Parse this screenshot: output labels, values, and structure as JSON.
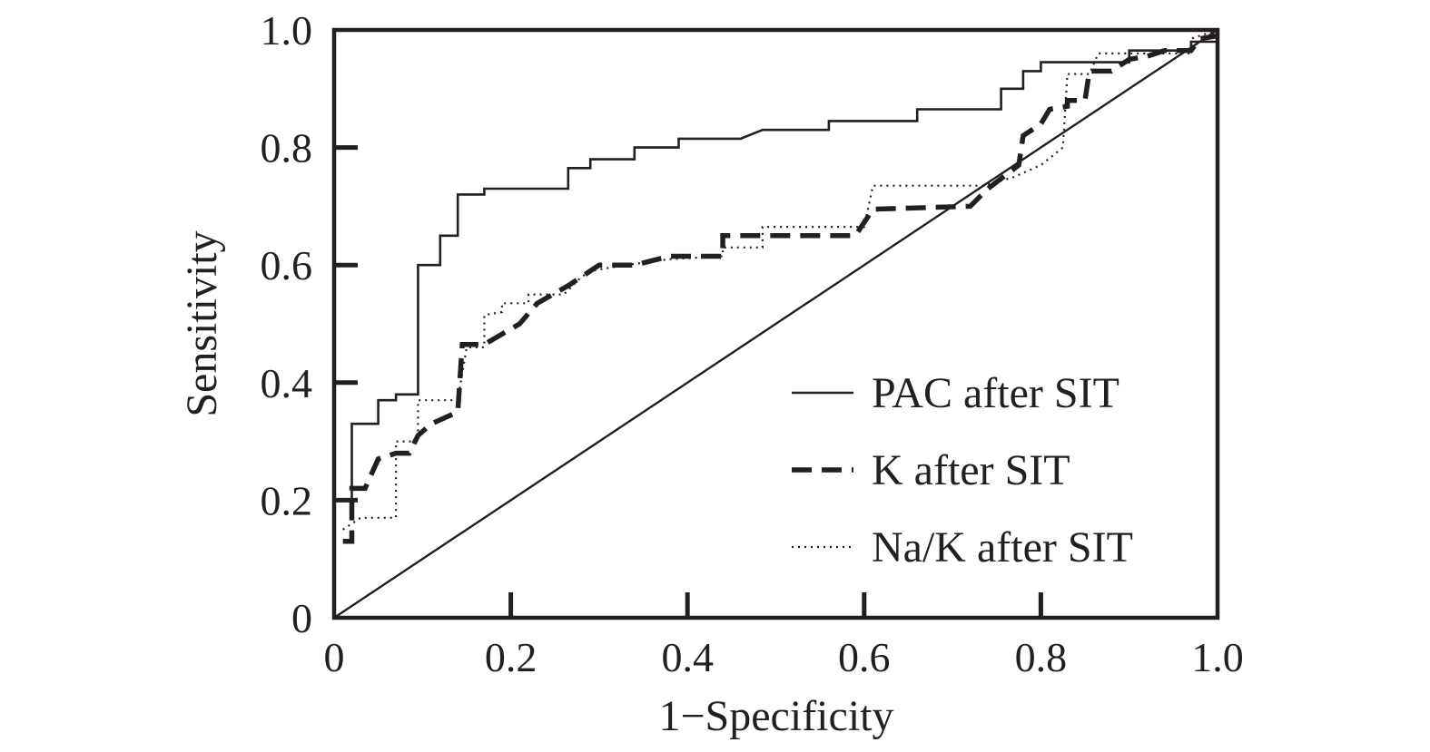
{
  "chart_data": {
    "type": "line",
    "title": "",
    "xlabel": "1−Specificity",
    "ylabel": "Sensitivity",
    "xlim": [
      0,
      1
    ],
    "ylim": [
      0,
      1
    ],
    "x_ticks": [
      0,
      0.2,
      0.4,
      0.6,
      0.8,
      1.0
    ],
    "x_tick_labels": [
      "0",
      "0.2",
      "0.4",
      "0.6",
      "0.8",
      "1.0"
    ],
    "y_ticks": [
      0,
      0.2,
      0.4,
      0.6,
      0.8,
      1.0
    ],
    "y_tick_labels": [
      "0",
      "0.2",
      "0.4",
      "0.6",
      "0.8",
      "1.0"
    ],
    "grid": false,
    "legend_position": "bottom-right",
    "reference_line": {
      "name": "Reference",
      "points": [
        [
          0,
          0
        ],
        [
          1,
          1
        ]
      ]
    },
    "series": [
      {
        "name": "PAC after SIT",
        "style": "solid",
        "points": [
          [
            0,
            0.2
          ],
          [
            0.02,
            0.2
          ],
          [
            0.02,
            0.22
          ],
          [
            0.02,
            0.33
          ],
          [
            0.05,
            0.33
          ],
          [
            0.05,
            0.37
          ],
          [
            0.07,
            0.37
          ],
          [
            0.07,
            0.38
          ],
          [
            0.095,
            0.38
          ],
          [
            0.095,
            0.6
          ],
          [
            0.12,
            0.6
          ],
          [
            0.12,
            0.65
          ],
          [
            0.14,
            0.65
          ],
          [
            0.14,
            0.72
          ],
          [
            0.17,
            0.72
          ],
          [
            0.17,
            0.73
          ],
          [
            0.265,
            0.73
          ],
          [
            0.265,
            0.765
          ],
          [
            0.29,
            0.765
          ],
          [
            0.29,
            0.78
          ],
          [
            0.34,
            0.78
          ],
          [
            0.34,
            0.8
          ],
          [
            0.39,
            0.8
          ],
          [
            0.39,
            0.815
          ],
          [
            0.46,
            0.815
          ],
          [
            0.485,
            0.83
          ],
          [
            0.56,
            0.83
          ],
          [
            0.56,
            0.845
          ],
          [
            0.66,
            0.845
          ],
          [
            0.66,
            0.865
          ],
          [
            0.755,
            0.865
          ],
          [
            0.755,
            0.9
          ],
          [
            0.78,
            0.9
          ],
          [
            0.78,
            0.93
          ],
          [
            0.8,
            0.93
          ],
          [
            0.8,
            0.945
          ],
          [
            0.9,
            0.945
          ],
          [
            0.9,
            0.965
          ],
          [
            0.97,
            0.965
          ],
          [
            0.97,
            0.98
          ],
          [
            1.0,
            0.98
          ],
          [
            1.0,
            1.0
          ]
        ]
      },
      {
        "name": "K after SIT",
        "style": "dashed",
        "points": [
          [
            0.01,
            0.13
          ],
          [
            0.02,
            0.13
          ],
          [
            0.02,
            0.22
          ],
          [
            0.035,
            0.22
          ],
          [
            0.05,
            0.27
          ],
          [
            0.07,
            0.28
          ],
          [
            0.085,
            0.28
          ],
          [
            0.095,
            0.31
          ],
          [
            0.11,
            0.33
          ],
          [
            0.14,
            0.35
          ],
          [
            0.145,
            0.465
          ],
          [
            0.17,
            0.465
          ],
          [
            0.21,
            0.5
          ],
          [
            0.23,
            0.535
          ],
          [
            0.265,
            0.565
          ],
          [
            0.29,
            0.59
          ],
          [
            0.3,
            0.6
          ],
          [
            0.34,
            0.6
          ],
          [
            0.38,
            0.615
          ],
          [
            0.44,
            0.615
          ],
          [
            0.44,
            0.65
          ],
          [
            0.59,
            0.65
          ],
          [
            0.61,
            0.695
          ],
          [
            0.72,
            0.7
          ],
          [
            0.74,
            0.73
          ],
          [
            0.775,
            0.77
          ],
          [
            0.78,
            0.82
          ],
          [
            0.8,
            0.84
          ],
          [
            0.81,
            0.865
          ],
          [
            0.83,
            0.87
          ],
          [
            0.83,
            0.88
          ],
          [
            0.85,
            0.88
          ],
          [
            0.855,
            0.93
          ],
          [
            0.88,
            0.93
          ],
          [
            0.9,
            0.95
          ],
          [
            0.92,
            0.955
          ],
          [
            0.94,
            0.965
          ],
          [
            0.97,
            0.965
          ],
          [
            0.98,
            0.985
          ],
          [
            1.0,
            0.99
          ]
        ]
      },
      {
        "name": "Na/K after SIT",
        "style": "dotted",
        "points": [
          [
            0.01,
            0.15
          ],
          [
            0.02,
            0.16
          ],
          [
            0.03,
            0.17
          ],
          [
            0.07,
            0.17
          ],
          [
            0.07,
            0.3
          ],
          [
            0.095,
            0.3
          ],
          [
            0.095,
            0.37
          ],
          [
            0.14,
            0.37
          ],
          [
            0.15,
            0.46
          ],
          [
            0.17,
            0.46
          ],
          [
            0.17,
            0.515
          ],
          [
            0.19,
            0.52
          ],
          [
            0.19,
            0.535
          ],
          [
            0.22,
            0.535
          ],
          [
            0.22,
            0.55
          ],
          [
            0.26,
            0.55
          ],
          [
            0.28,
            0.58
          ],
          [
            0.29,
            0.59
          ],
          [
            0.33,
            0.6
          ],
          [
            0.38,
            0.61
          ],
          [
            0.44,
            0.615
          ],
          [
            0.44,
            0.63
          ],
          [
            0.485,
            0.63
          ],
          [
            0.485,
            0.665
          ],
          [
            0.6,
            0.665
          ],
          [
            0.61,
            0.735
          ],
          [
            0.735,
            0.735
          ],
          [
            0.77,
            0.75
          ],
          [
            0.8,
            0.77
          ],
          [
            0.825,
            0.8
          ],
          [
            0.83,
            0.925
          ],
          [
            0.855,
            0.925
          ],
          [
            0.865,
            0.96
          ],
          [
            0.97,
            0.96
          ],
          [
            0.97,
            0.985
          ],
          [
            1.0,
            1.0
          ]
        ]
      }
    ]
  }
}
